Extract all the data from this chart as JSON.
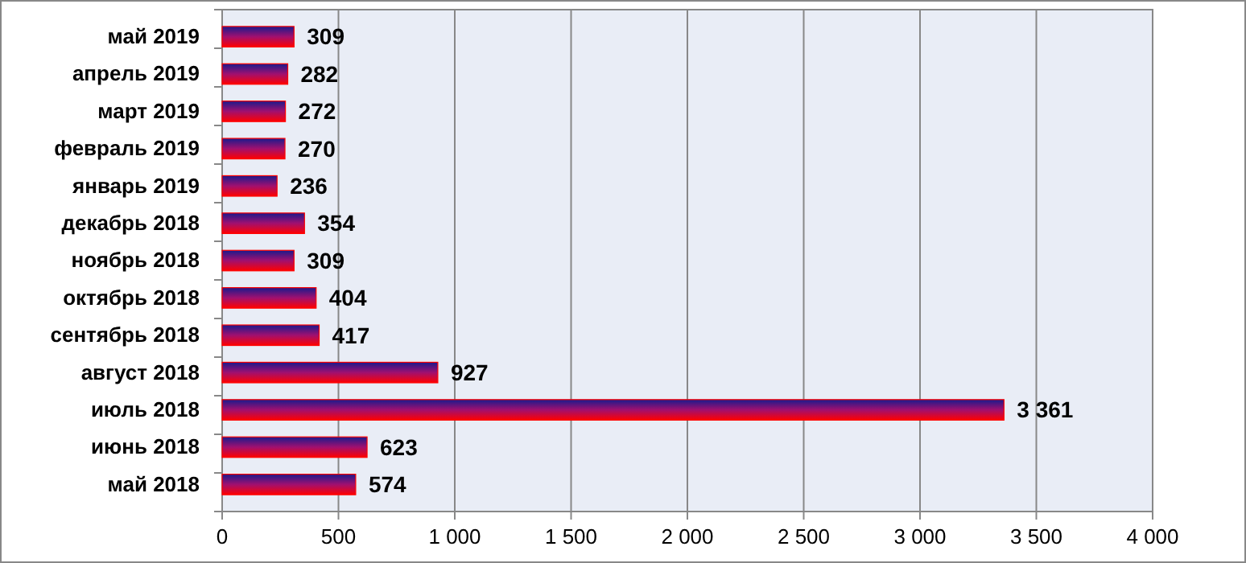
{
  "chart_data": {
    "type": "bar",
    "orientation": "horizontal",
    "categories": [
      "май 2019",
      "апрель 2019",
      "март 2019",
      "февраль 2019",
      "январь 2019",
      "декабрь 2018",
      "ноябрь 2018",
      "октябрь 2018",
      "сентябрь 2018",
      "август 2018",
      "июль 2018",
      "июнь 2018",
      "май 2018"
    ],
    "values": [
      309,
      282,
      272,
      270,
      236,
      354,
      309,
      404,
      417,
      927,
      3361,
      623,
      574
    ],
    "value_labels": [
      "309",
      "282",
      "272",
      "270",
      "236",
      "354",
      "309",
      "404",
      "417",
      "927",
      "3 361",
      "623",
      "574"
    ],
    "color": "#ff0000",
    "xlim": [
      0,
      4000
    ],
    "xticks": [
      0,
      500,
      {
        "value": 1000,
        "label": "1 000"
      },
      {
        "value": 1500,
        "label": "1 500"
      },
      {
        "value": 2000,
        "label": "2 000"
      },
      {
        "value": 2500,
        "label": "2 500"
      },
      {
        "value": 3000,
        "label": "3 000"
      },
      {
        "value": 3500,
        "label": "3 500"
      },
      {
        "value": 4000,
        "label": "4 000"
      }
    ],
    "grid": "x"
  }
}
